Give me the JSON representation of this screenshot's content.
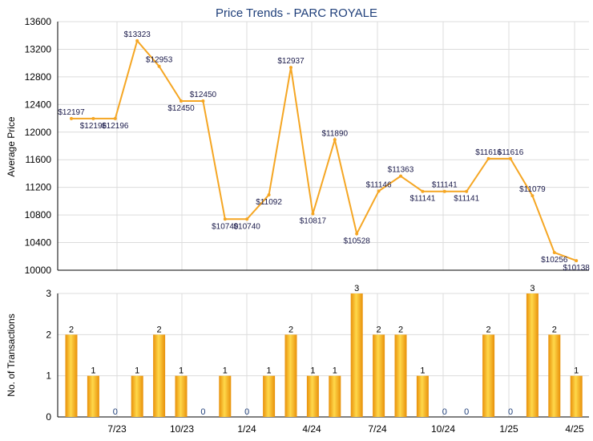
{
  "chart_data": [
    {
      "type": "line",
      "title": "Price Trends - PARC ROYALE",
      "ylabel": "Average Price",
      "ylim": [
        10000,
        13600
      ],
      "yticks": [
        10000,
        10400,
        10800,
        11200,
        11600,
        12000,
        12400,
        12800,
        13200,
        13600
      ],
      "grid": true,
      "color": "#f5a623",
      "values": [
        12197,
        12196,
        12196,
        13323,
        12953,
        12450,
        12450,
        10740,
        10740,
        11092,
        12937,
        10817,
        11890,
        10528,
        11146,
        11363,
        11141,
        11141,
        11141,
        11616,
        11616,
        11079,
        10256,
        10138
      ],
      "labels": [
        "$12197",
        "$12196",
        "$12196",
        "$13323",
        "$12953",
        "$12450",
        "$12450",
        "$10740",
        "$10740",
        "$11092",
        "$12937",
        "$10817",
        "$11890",
        "$10528",
        "$11146",
        "$11363",
        "$11141",
        "$11141",
        "$11141",
        "$11616",
        "$11616",
        "$11079",
        "$10256",
        "$10138"
      ]
    },
    {
      "type": "bar",
      "ylabel": "No. of Transactions",
      "ylim": [
        0,
        3
      ],
      "yticks": [
        0,
        1,
        2,
        3
      ],
      "grid": true,
      "color": "#f5a623",
      "values": [
        2,
        1,
        0,
        1,
        2,
        1,
        0,
        1,
        0,
        1,
        2,
        1,
        1,
        3,
        2,
        2,
        1,
        0,
        0,
        2,
        0,
        3,
        2,
        1
      ],
      "value_labels": [
        "2",
        "1",
        "0",
        "1",
        "2",
        "1",
        "0",
        "1",
        "0",
        "1",
        "2",
        "1",
        "1",
        "3",
        "2",
        "2",
        "1",
        "0",
        "0",
        "2",
        "0",
        "3",
        "2",
        "1"
      ],
      "x_tick_labels": [
        "7/23",
        "10/23",
        "1/24",
        "4/24",
        "7/24",
        "10/24",
        "1/25",
        "4/25"
      ]
    }
  ]
}
